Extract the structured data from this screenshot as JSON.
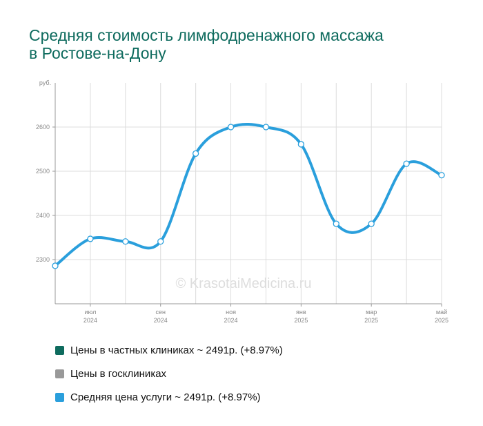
{
  "title_lines": [
    "Средняя стоимость лимфодренажного массажа",
    "в Ростове-на-Дону"
  ],
  "watermark": "© KrasotaiMedicina.ru",
  "legend": [
    {
      "label": "Цены в частных клиниках ~ 2491р. (+8.97%)",
      "color": "#0e6b5e"
    },
    {
      "label": "Цены в госклиниках",
      "color": "#999999"
    },
    {
      "label": "Средняя цена услуги ~ 2491р. (+8.97%)",
      "color": "#2a9fdc"
    }
  ],
  "chart_data": {
    "type": "line",
    "y_unit_label": "руб.",
    "ylim": [
      2200,
      2700
    ],
    "y_ticks": [
      2300,
      2400,
      2500,
      2600
    ],
    "x_ticks": [
      {
        "idx": 1,
        "month": "июл",
        "year": "2024"
      },
      {
        "idx": 3,
        "month": "сен",
        "year": "2024"
      },
      {
        "idx": 5,
        "month": "ноя",
        "year": "2024"
      },
      {
        "idx": 7,
        "month": "янв",
        "year": "2025"
      },
      {
        "idx": 9,
        "month": "мар",
        "year": "2025"
      },
      {
        "idx": 11,
        "month": "май",
        "year": "2025"
      }
    ],
    "grid": true,
    "series": [
      {
        "name": "Средняя цена услуги",
        "color": "#2a9fdc",
        "x": [
          "2024-06",
          "2024-07",
          "2024-08",
          "2024-09",
          "2024-10",
          "2024-11",
          "2024-12",
          "2025-01",
          "2025-02",
          "2025-03",
          "2025-04",
          "2025-05"
        ],
        "values": [
          2286,
          2347,
          2341,
          2341,
          2540,
          2600,
          2600,
          2561,
          2381,
          2381,
          2517,
          2491
        ]
      }
    ]
  }
}
